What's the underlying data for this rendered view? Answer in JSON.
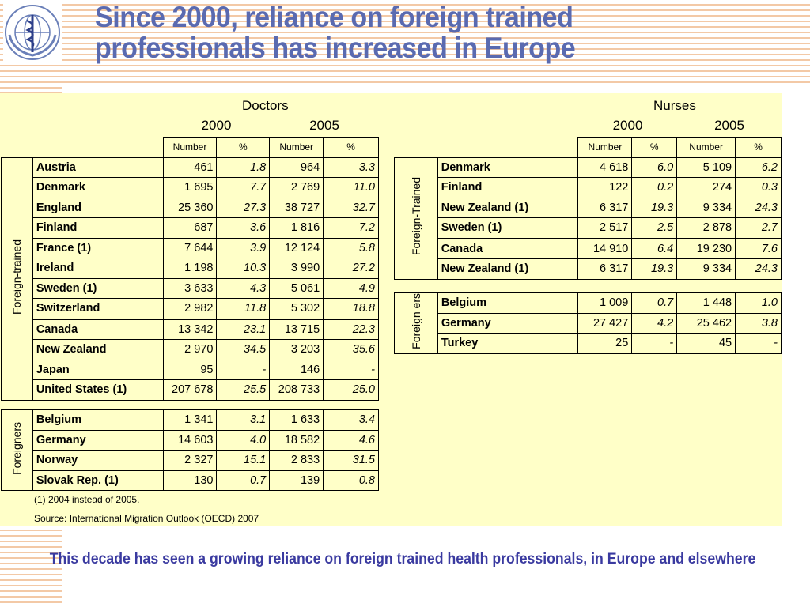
{
  "title": {
    "line1": "Since 2000, reliance on foreign trained",
    "line2": "professionals has increased in Europe"
  },
  "doctors": {
    "label": "Doctors",
    "year1": "2000",
    "year2": "2005",
    "cols": [
      "Number",
      "%",
      "Number",
      "%"
    ],
    "group1_label": "Foreign-trained",
    "group1": [
      {
        "name": "Austria",
        "n2000": "461",
        "p2000": "1.8",
        "n2005": "964",
        "p2005": "3.3"
      },
      {
        "name": "Denmark",
        "n2000": "1 695",
        "p2000": "7.7",
        "n2005": "2 769",
        "p2005": "11.0"
      },
      {
        "name": "England",
        "n2000": "25 360",
        "p2000": "27.3",
        "n2005": "38 727",
        "p2005": "32.7"
      },
      {
        "name": "Finland",
        "n2000": "687",
        "p2000": "3.6",
        "n2005": "1 816",
        "p2005": "7.2"
      },
      {
        "name": "France (1)",
        "n2000": "7 644",
        "p2000": "3.9",
        "n2005": "12 124",
        "p2005": "5.8"
      },
      {
        "name": "Ireland",
        "n2000": "1 198",
        "p2000": "10.3",
        "n2005": "3 990",
        "p2005": "27.2"
      },
      {
        "name": "Sweden (1)",
        "n2000": "3 633",
        "p2000": "4.3",
        "n2005": "5 061",
        "p2005": "4.9"
      },
      {
        "name": "Switzerland",
        "n2000": "2 982",
        "p2000": "11.8",
        "n2005": "5 302",
        "p2005": "18.8"
      },
      {
        "name": "Canada",
        "n2000": "13 342",
        "p2000": "23.1",
        "n2005": "13 715",
        "p2005": "22.3"
      },
      {
        "name": "New Zealand",
        "n2000": "2 970",
        "p2000": "34.5",
        "n2005": "3 203",
        "p2005": "35.6"
      },
      {
        "name": "Japan",
        "n2000": "95",
        "p2000": "-",
        "n2005": "146",
        "p2005": "-"
      },
      {
        "name": "United States (1)",
        "n2000": "207 678",
        "p2000": "25.5",
        "n2005": "208 733",
        "p2005": "25.0"
      }
    ],
    "group2_label": "Foreigners",
    "group2": [
      {
        "name": "Belgium",
        "n2000": "1 341",
        "p2000": "3.1",
        "n2005": "1 633",
        "p2005": "3.4"
      },
      {
        "name": "Germany",
        "n2000": "14 603",
        "p2000": "4.0",
        "n2005": "18 582",
        "p2005": "4.6"
      },
      {
        "name": "Norway",
        "n2000": "2 327",
        "p2000": "15.1",
        "n2005": "2 833",
        "p2005": "31.5"
      },
      {
        "name": "Slovak Rep. (1)",
        "n2000": "130",
        "p2000": "0.7",
        "n2005": "139",
        "p2005": "0.8"
      }
    ]
  },
  "nurses": {
    "label": "Nurses",
    "year1": "2000",
    "year2": "2005",
    "cols": [
      "Number",
      "%",
      "Number",
      "%"
    ],
    "group1_label": "Foreign-Trained",
    "group1": [
      {
        "name": "Denmark",
        "n2000": "4 618",
        "p2000": "6.0",
        "n2005": "5 109",
        "p2005": "6.2"
      },
      {
        "name": "Finland",
        "n2000": "122",
        "p2000": "0.2",
        "n2005": "274",
        "p2005": "0.3"
      },
      {
        "name": "New Zealand (1)",
        "n2000": "6 317",
        "p2000": "19.3",
        "n2005": "9 334",
        "p2005": "24.3"
      },
      {
        "name": "Sweden (1)",
        "n2000": "2 517",
        "p2000": "2.5",
        "n2005": "2 878",
        "p2005": "2.7"
      },
      {
        "name": "Canada",
        "n2000": "14 910",
        "p2000": "6.4",
        "n2005": "19 230",
        "p2005": "7.6"
      },
      {
        "name": "New Zealand (1)",
        "n2000": "6 317",
        "p2000": "19.3",
        "n2005": "9 334",
        "p2005": "24.3"
      }
    ],
    "group2_label": "Foreign ers",
    "group2": [
      {
        "name": "Belgium",
        "n2000": "1 009",
        "p2000": "0.7",
        "n2005": "1 448",
        "p2005": "1.0"
      },
      {
        "name": "Germany",
        "n2000": "27 427",
        "p2000": "4.2",
        "n2005": "25 462",
        "p2005": "3.8"
      },
      {
        "name": "Turkey",
        "n2000": "25",
        "p2000": "-",
        "n2005": "45",
        "p2005": "-"
      }
    ]
  },
  "notes": {
    "footnote": "(1) 2004 instead of 2005.",
    "source": "Source:  International Migration Outlook (OECD) 2007"
  },
  "footer": "This decade has seen a growing reliance on foreign trained health professionals, in Europe and elsewhere",
  "colors": {
    "title": "#5a6ab0",
    "panel": "#ffffc8",
    "footer": "#3a3aa0",
    "stripe": "#f3c9a6"
  }
}
